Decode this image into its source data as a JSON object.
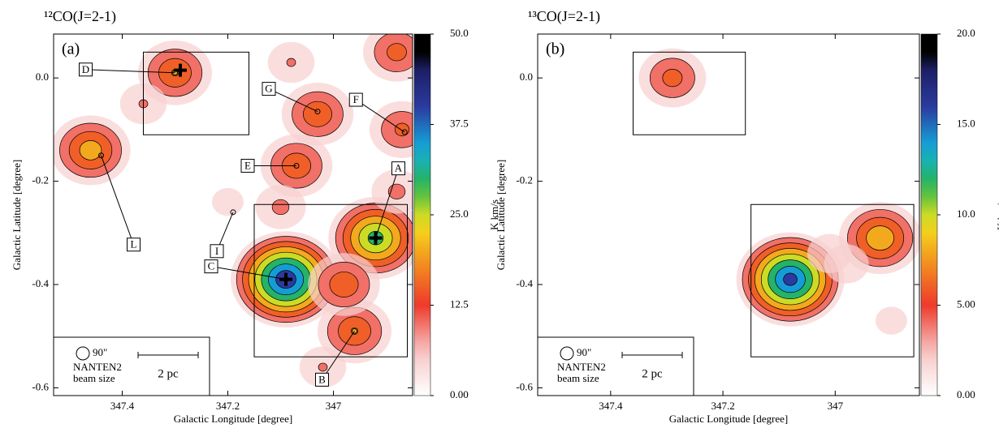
{
  "chart_data": [
    {
      "type": "map",
      "title": "¹²CO(J=2-1)",
      "panel_label": "(a)",
      "x_label": "Galactic Longitude [degree]",
      "y_label": "Galactic Latitude [degree]",
      "xlim": [
        347.53,
        346.85
      ],
      "ylim": [
        -0.615,
        0.085
      ],
      "xticks": [
        347.4,
        347.2,
        347.0
      ],
      "yticks": [
        {
          "value": 0,
          "label": "0.0"
        },
        {
          "value": -0.2,
          "label": "-0.2"
        },
        {
          "value": -0.4,
          "label": "-0.4"
        },
        {
          "value": -0.6,
          "label": "-0.6"
        }
      ],
      "colorbar_label": "K km/s",
      "clim": [
        0,
        50
      ],
      "cticks": [
        {
          "value": 0,
          "label": "0.00"
        },
        {
          "value": 12.5,
          "label": "12.5"
        },
        {
          "value": 25,
          "label": "25.0"
        },
        {
          "value": 37.5,
          "label": "37.5"
        },
        {
          "value": 50,
          "label": "50.0"
        }
      ],
      "beam": "90\"",
      "beam_text": [
        "NANTEN2",
        "beam size"
      ],
      "scale_text": "2 pc",
      "peaks": [
        {
          "x": 347.3,
          "y": 0.01,
          "value": 18
        },
        {
          "x": 347.46,
          "y": -0.14,
          "value": 21
        },
        {
          "x": 347.03,
          "y": -0.07,
          "value": 17
        },
        {
          "x": 347.07,
          "y": -0.17,
          "value": 17
        },
        {
          "x": 346.87,
          "y": -0.1,
          "value": 14
        },
        {
          "x": 346.92,
          "y": -0.31,
          "value": 30
        },
        {
          "x": 347.09,
          "y": -0.39,
          "value": 42
        },
        {
          "x": 346.96,
          "y": -0.49,
          "value": 18
        },
        {
          "x": 346.98,
          "y": -0.4,
          "value": 17
        },
        {
          "x": 346.88,
          "y": 0.05,
          "value": 15
        },
        {
          "x": 347.36,
          "y": -0.05,
          "value": 8
        },
        {
          "x": 347.1,
          "y": -0.25,
          "value": 9
        },
        {
          "x": 347.02,
          "y": -0.56,
          "value": 8
        },
        {
          "x": 347.2,
          "y": -0.24,
          "value": 5
        },
        {
          "x": 346.88,
          "y": -0.22,
          "value": 9
        },
        {
          "x": 347.08,
          "y": 0.03,
          "value": 8
        }
      ],
      "crosses": [
        {
          "x": 347.29,
          "y": 0.015
        },
        {
          "x": 346.92,
          "y": -0.31
        },
        {
          "x": 347.09,
          "y": -0.39
        }
      ],
      "regions": [
        {
          "lon": [
            347.36,
            347.16
          ],
          "lat": [
            0.05,
            -0.11
          ]
        },
        {
          "lon": [
            347.15,
            346.86
          ],
          "lat": [
            -0.245,
            -0.54
          ]
        }
      ],
      "annotations": [
        {
          "label": "D",
          "x": 347.3,
          "y": 0.01
        },
        {
          "label": "G",
          "x": 347.03,
          "y": -0.065
        },
        {
          "label": "F",
          "x": 346.865,
          "y": -0.105
        },
        {
          "label": "E",
          "x": 347.07,
          "y": -0.17
        },
        {
          "label": "A",
          "x": 346.92,
          "y": -0.31
        },
        {
          "label": "L",
          "x": 347.44,
          "y": -0.15
        },
        {
          "label": "I",
          "x": 347.19,
          "y": -0.26
        },
        {
          "label": "C",
          "x": 347.09,
          "y": -0.39
        },
        {
          "label": "B",
          "x": 346.96,
          "y": -0.49
        }
      ]
    },
    {
      "type": "map",
      "title": "¹³CO(J=2-1)",
      "panel_label": "(b)",
      "x_label": "Galactic Longitude [degree]",
      "y_label": "Galactic Latitude [degree]",
      "xlim": [
        347.53,
        346.85
      ],
      "ylim": [
        -0.615,
        0.085
      ],
      "xticks": [
        347.4,
        347.2,
        347.0
      ],
      "yticks": [
        {
          "value": 0,
          "label": "0.0"
        },
        {
          "value": -0.2,
          "label": "-0.2"
        },
        {
          "value": -0.4,
          "label": "-0.4"
        },
        {
          "value": -0.6,
          "label": "-0.6"
        }
      ],
      "colorbar_label": "K km/s",
      "clim": [
        0,
        20
      ],
      "cticks": [
        {
          "value": 0,
          "label": "0.00"
        },
        {
          "value": 5,
          "label": "5.00"
        },
        {
          "value": 10,
          "label": "10.0"
        },
        {
          "value": 15,
          "label": "15.0"
        },
        {
          "value": 20,
          "label": "20.0"
        }
      ],
      "beam": "90\"",
      "beam_text": [
        "NANTEN2",
        "beam size"
      ],
      "scale_text": "2 pc",
      "peaks": [
        {
          "x": 347.29,
          "y": 0.0,
          "value": 6
        },
        {
          "x": 347.08,
          "y": -0.39,
          "value": 16
        },
        {
          "x": 346.92,
          "y": -0.31,
          "value": 9
        },
        {
          "x": 346.98,
          "y": -0.36,
          "value": 3
        },
        {
          "x": 347.01,
          "y": -0.34,
          "value": 3
        },
        {
          "x": 346.9,
          "y": -0.47,
          "value": 2
        }
      ],
      "regions": [
        {
          "lon": [
            347.36,
            347.16
          ],
          "lat": [
            0.05,
            -0.11
          ]
        },
        {
          "lon": [
            347.15,
            346.86
          ],
          "lat": [
            -0.245,
            -0.54
          ]
        }
      ]
    }
  ]
}
